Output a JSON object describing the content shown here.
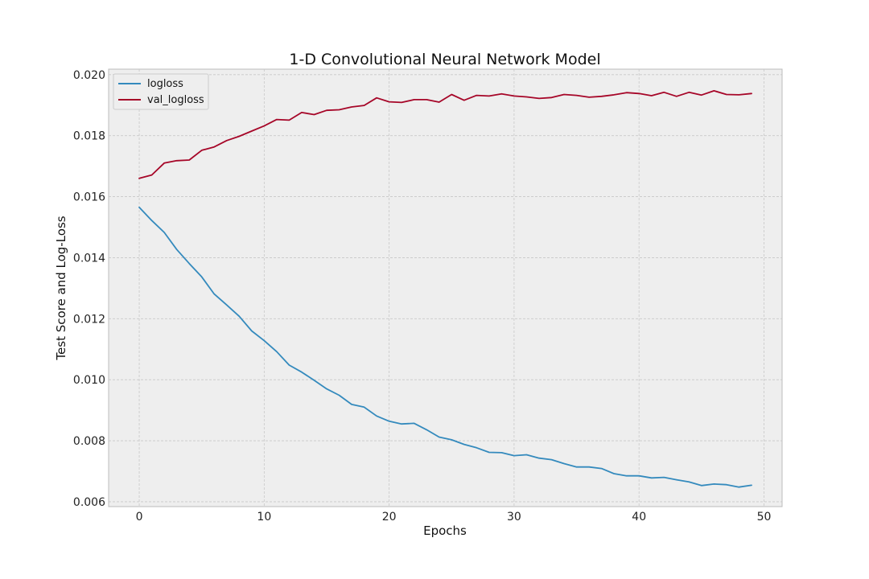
{
  "chart_data": {
    "type": "line",
    "title": "1-D Convolutional Neural Network Model",
    "xlabel": "Epochs",
    "ylabel": "Test Score and Log-Loss",
    "xlim": [
      -2.45,
      51.45
    ],
    "ylim": [
      0.00584,
      0.02018
    ],
    "xticks": [
      0,
      10,
      20,
      30,
      40,
      50
    ],
    "xtick_labels": [
      "0",
      "10",
      "20",
      "30",
      "40",
      "50"
    ],
    "yticks": [
      0.006,
      0.008,
      0.01,
      0.012,
      0.014,
      0.016,
      0.018,
      0.02
    ],
    "ytick_labels": [
      "0.006",
      "0.008",
      "0.010",
      "0.012",
      "0.014",
      "0.016",
      "0.018",
      "0.020"
    ],
    "grid": true,
    "legend_position": "top-left",
    "x": [
      0,
      1,
      2,
      3,
      4,
      5,
      6,
      7,
      8,
      9,
      10,
      11,
      12,
      13,
      14,
      15,
      16,
      17,
      18,
      19,
      20,
      21,
      22,
      23,
      24,
      25,
      26,
      27,
      28,
      29,
      30,
      31,
      32,
      33,
      34,
      35,
      36,
      37,
      38,
      39,
      40,
      41,
      42,
      43,
      44,
      45,
      46,
      47,
      48,
      49
    ],
    "series": [
      {
        "name": "logloss",
        "color": "#348abd",
        "values": [
          0.01565,
          0.01522,
          0.01483,
          0.01427,
          0.01381,
          0.01337,
          0.01281,
          0.01245,
          0.01208,
          0.0116,
          0.01128,
          0.01092,
          0.01048,
          0.01025,
          0.00998,
          0.0097,
          0.00949,
          0.00919,
          0.0091,
          0.00881,
          0.00864,
          0.00855,
          0.00857,
          0.00836,
          0.00812,
          0.00803,
          0.00788,
          0.00777,
          0.00762,
          0.00761,
          0.00751,
          0.00754,
          0.00743,
          0.00738,
          0.00725,
          0.00714,
          0.00714,
          0.00709,
          0.00692,
          0.00685,
          0.00685,
          0.00678,
          0.0068,
          0.00672,
          0.00665,
          0.00653,
          0.00658,
          0.00656,
          0.00648,
          0.00654
        ]
      },
      {
        "name": "val_logloss",
        "color": "#a60628",
        "values": [
          0.0166,
          0.01671,
          0.0171,
          0.01718,
          0.0172,
          0.01752,
          0.01763,
          0.01784,
          0.01798,
          0.01815,
          0.01832,
          0.01853,
          0.01851,
          0.01876,
          0.01869,
          0.01883,
          0.01885,
          0.01894,
          0.01899,
          0.01924,
          0.01911,
          0.01909,
          0.01918,
          0.01918,
          0.0191,
          0.01935,
          0.01916,
          0.01932,
          0.0193,
          0.01937,
          0.0193,
          0.01927,
          0.01922,
          0.01925,
          0.01935,
          0.01932,
          0.01926,
          0.01929,
          0.01934,
          0.01941,
          0.01938,
          0.01931,
          0.01942,
          0.01929,
          0.01942,
          0.01933,
          0.01947,
          0.01935,
          0.01934,
          0.01938
        ]
      }
    ]
  }
}
